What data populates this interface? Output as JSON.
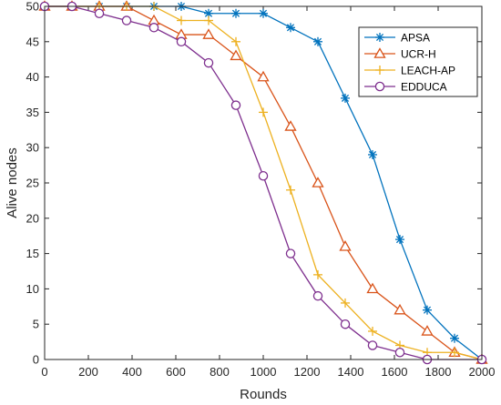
{
  "chart_data": {
    "type": "line",
    "title": "",
    "xlabel": "Rounds",
    "ylabel": "Alive nodes",
    "xlim": [
      0,
      2000
    ],
    "ylim": [
      0,
      50
    ],
    "xticks": [
      0,
      200,
      400,
      600,
      800,
      1000,
      1200,
      1400,
      1600,
      1800,
      2000
    ],
    "yticks": [
      0,
      5,
      10,
      15,
      20,
      25,
      30,
      35,
      40,
      45,
      50
    ],
    "grid": false,
    "legend_position": "top-right",
    "x": [
      0,
      125,
      250,
      375,
      500,
      625,
      750,
      875,
      1000,
      1125,
      1250,
      1375,
      1500,
      1625,
      1750,
      1875,
      2000
    ],
    "series": [
      {
        "name": "APSA",
        "color": "#0072BD",
        "marker": "asterisk",
        "x": [
          0,
          125,
          250,
          375,
          500,
          625,
          750,
          875,
          1000,
          1125,
          1250,
          1375,
          1500,
          1625,
          1750,
          1875,
          2000
        ],
        "values": [
          50,
          50,
          50,
          50,
          50,
          50,
          49,
          49,
          49,
          47,
          45,
          37,
          29,
          17,
          7,
          3,
          0
        ]
      },
      {
        "name": "UCR-H",
        "color": "#D95319",
        "marker": "triangle",
        "x": [
          0,
          125,
          250,
          375,
          500,
          625,
          750,
          875,
          1000,
          1125,
          1250,
          1375,
          1500,
          1625,
          1750,
          1875,
          2000
        ],
        "values": [
          50,
          50,
          50,
          50,
          48,
          46,
          46,
          43,
          40,
          33,
          25,
          16,
          10,
          7,
          4,
          1,
          0
        ]
      },
      {
        "name": "LEACH-AP",
        "color": "#EDB120",
        "marker": "plus",
        "x": [
          0,
          125,
          250,
          375,
          500,
          625,
          750,
          875,
          1000,
          1125,
          1250,
          1375,
          1500,
          1625,
          1750,
          1875,
          2000
        ],
        "values": [
          50,
          50,
          50,
          50,
          50,
          48,
          48,
          45,
          35,
          24,
          12,
          8,
          4,
          2,
          1,
          1,
          0
        ]
      },
      {
        "name": "EDDUCA",
        "color": "#7E2F8E",
        "marker": "circle",
        "x": [
          0,
          125,
          250,
          375,
          500,
          625,
          750,
          875,
          1000,
          1125,
          1250,
          1375,
          1500,
          1625,
          1750,
          2000
        ],
        "values": [
          50,
          50,
          49,
          48,
          47,
          45,
          42,
          36,
          26,
          15,
          9,
          5,
          2,
          1,
          0,
          0
        ]
      }
    ]
  }
}
